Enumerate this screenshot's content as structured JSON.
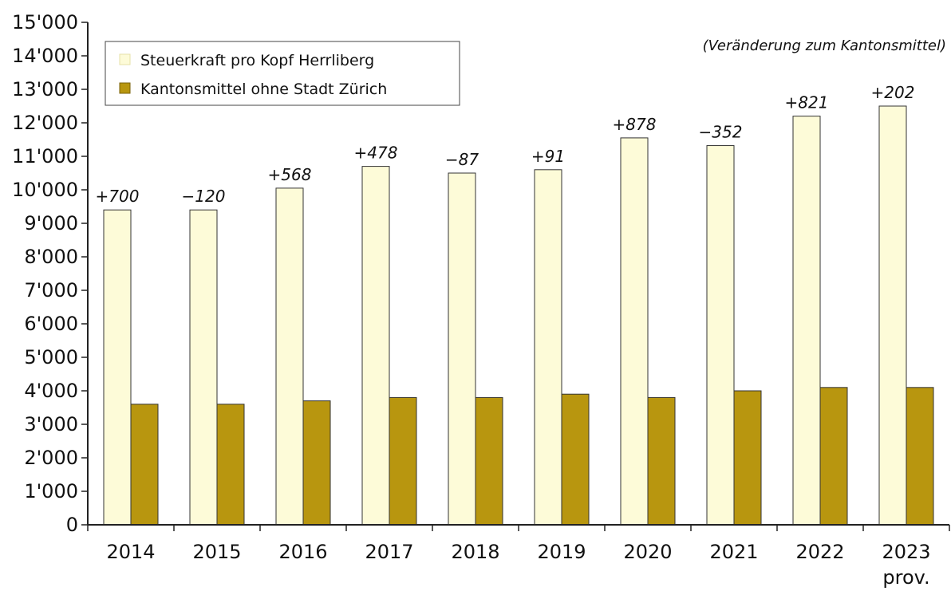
{
  "chart_data": {
    "type": "bar",
    "title": "",
    "xlabel": "",
    "ylabel": "",
    "annotation": "(Veränderung zum Kantonsmittel)",
    "categories": [
      "2014",
      "2015",
      "2016",
      "2017",
      "2018",
      "2019",
      "2020",
      "2021",
      "2022",
      "2023"
    ],
    "last_category_sublabel": "prov.",
    "ylim": [
      0,
      15000
    ],
    "yticks": [
      "0",
      "1'000",
      "2'000",
      "3'000",
      "4'000",
      "5'000",
      "6'000",
      "7'000",
      "8'000",
      "9'000",
      "10'000",
      "11'000",
      "12'000",
      "13'000",
      "14'000",
      "15'000"
    ],
    "grid": false,
    "legend_position": "top-left",
    "series": [
      {
        "name": "Steuerkraft pro Kopf Herrliberg",
        "color": "#fdfbd8",
        "values": [
          9400,
          9400,
          10050,
          10700,
          10500,
          10600,
          11550,
          11320,
          12200,
          12500
        ]
      },
      {
        "name": "Kantonsmittel ohne Stadt Zürich",
        "color": "#b8960f",
        "values": [
          3600,
          3600,
          3700,
          3800,
          3800,
          3900,
          3800,
          4000,
          4100,
          4100
        ]
      }
    ],
    "data_labels": [
      "+700",
      "−120",
      "+568",
      "+478",
      "−87",
      "+91",
      "+878",
      "−352",
      "+821",
      "+202"
    ]
  }
}
